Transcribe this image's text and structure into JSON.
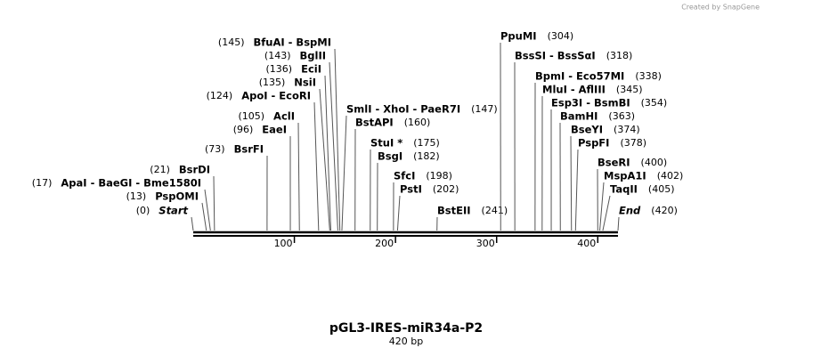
{
  "credit": "Created by SnapGene",
  "title": "pGL3-IRES-miR34a-P2",
  "subtitle": "420 bp",
  "ruler": {
    "length": 420,
    "ticks": [
      100,
      200,
      300,
      400
    ]
  },
  "sites": [
    {
      "name": "BfuAI - BspMI",
      "position": {
        "value": 145,
        "label": "(145)"
      }
    },
    {
      "name": "BglII",
      "position": {
        "value": 143,
        "label": "(143)"
      }
    },
    {
      "name": "EciI",
      "position": {
        "value": 136,
        "label": "(136)"
      }
    },
    {
      "name": "NsiI",
      "position": {
        "value": 135,
        "label": "(135)"
      }
    },
    {
      "name": "ApoI - EcoRI",
      "position": {
        "value": 124,
        "label": "(124)"
      }
    },
    {
      "name": "AclI",
      "position": {
        "value": 105,
        "label": "(105)"
      }
    },
    {
      "name": "EaeI",
      "position": {
        "value": 96,
        "label": "(96)"
      }
    },
    {
      "name": "BsrFI",
      "position": {
        "value": 73,
        "label": "(73)"
      }
    },
    {
      "name": "BsrDI",
      "position": {
        "value": 21,
        "label": "(21)"
      }
    },
    {
      "name": "ApaI - BaeGI - Bme1580I",
      "position": {
        "value": 17,
        "label": "(17)"
      }
    },
    {
      "name": "PspOMI",
      "position": {
        "value": 13,
        "label": "(13)"
      }
    },
    {
      "name": "Start",
      "position": {
        "value": 0,
        "label": "(0)"
      }
    },
    {
      "name": "SmlI - XhoI - PaeR7I",
      "position": {
        "value": 147,
        "label": "(147)"
      }
    },
    {
      "name": "BstAPI",
      "position": {
        "value": 160,
        "label": "(160)"
      }
    },
    {
      "name": "StuI *",
      "position": {
        "value": 175,
        "label": "(175)"
      }
    },
    {
      "name": "BsgI",
      "position": {
        "value": 182,
        "label": "(182)"
      }
    },
    {
      "name": "SfcI",
      "position": {
        "value": 198,
        "label": "(198)"
      }
    },
    {
      "name": "PstI",
      "position": {
        "value": 202,
        "label": "(202)"
      }
    },
    {
      "name": "BstEII",
      "position": {
        "value": 241,
        "label": "(241)"
      }
    },
    {
      "name": "PpuMI",
      "position": {
        "value": 304,
        "label": "(304)"
      }
    },
    {
      "name": "BssSI - BssSαI",
      "position": {
        "value": 318,
        "label": "(318)"
      }
    },
    {
      "name": "BpmI - Eco57MI",
      "position": {
        "value": 338,
        "label": "(338)"
      }
    },
    {
      "name": "MluI - AflIII",
      "position": {
        "value": 345,
        "label": "(345)"
      }
    },
    {
      "name": "Esp3I - BsmBI",
      "position": {
        "value": 354,
        "label": "(354)"
      }
    },
    {
      "name": "BamHI",
      "position": {
        "value": 363,
        "label": "(363)"
      }
    },
    {
      "name": "BseYI",
      "position": {
        "value": 374,
        "label": "(374)"
      }
    },
    {
      "name": "PspFI",
      "position": {
        "value": 378,
        "label": "(378)"
      }
    },
    {
      "name": "BseRI",
      "position": {
        "value": 400,
        "label": "(400)"
      }
    },
    {
      "name": "MspA1I",
      "position": {
        "value": 402,
        "label": "(402)"
      }
    },
    {
      "name": "TaqII",
      "position": {
        "value": 405,
        "label": "(405)"
      }
    },
    {
      "name": "End",
      "position": {
        "value": 420,
        "label": "(420)"
      }
    }
  ]
}
